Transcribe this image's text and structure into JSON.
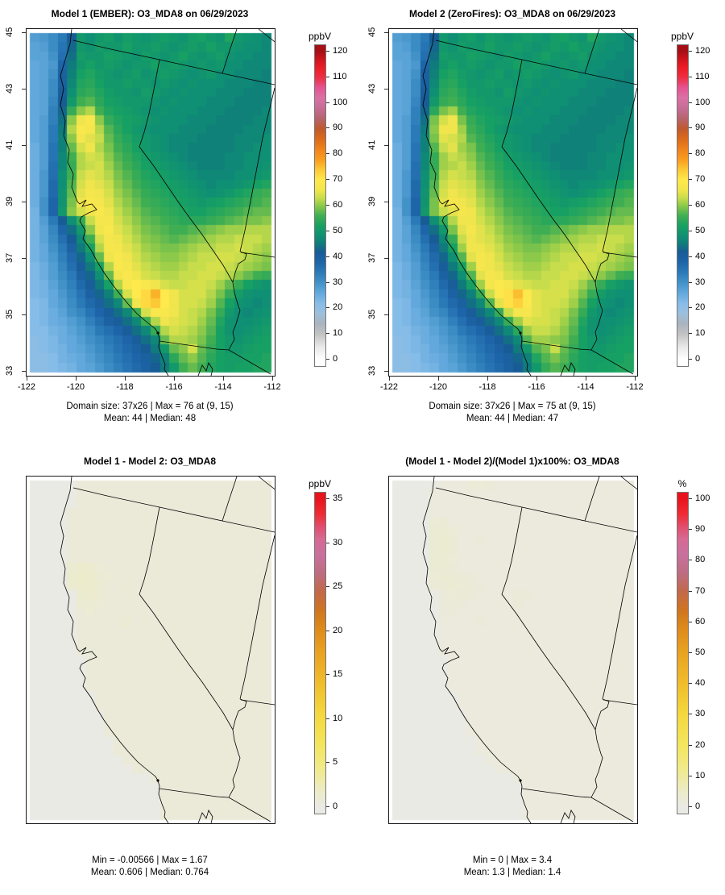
{
  "chart_data": {
    "type": "heatmap",
    "description_titles": "2x2 gridded model comparison maps of California/Nevada domain",
    "axes": {
      "x_tick_labels": [
        "-122",
        "-120",
        "-118",
        "-116",
        "-114",
        "-112"
      ],
      "y_tick_labels": [
        "33",
        "35",
        "37",
        "39",
        "41",
        "43",
        "45"
      ],
      "x_range": [
        -122,
        -112
      ],
      "y_range": [
        33,
        45
      ]
    },
    "palettes": {
      "main": [
        [
          0,
          "#ffffff"
        ],
        [
          0.042,
          "#e8e8e8"
        ],
        [
          0.083,
          "#c2c2c2"
        ],
        [
          0.117,
          "#aab4bf"
        ],
        [
          0.15,
          "#9cc0dd"
        ],
        [
          0.183,
          "#86bce8"
        ],
        [
          0.217,
          "#62a8dc"
        ],
        [
          0.25,
          "#4292c8"
        ],
        [
          0.283,
          "#2a7ab8"
        ],
        [
          0.317,
          "#1d64a8"
        ],
        [
          0.35,
          "#185c95"
        ],
        [
          0.375,
          "#107a7c"
        ],
        [
          0.4,
          "#0f8f74"
        ],
        [
          0.433,
          "#17a063"
        ],
        [
          0.467,
          "#3fae53"
        ],
        [
          0.5,
          "#8cc94a"
        ],
        [
          0.525,
          "#c8dd4b"
        ],
        [
          0.55,
          "#f0e54c"
        ],
        [
          0.583,
          "#ffe94d"
        ],
        [
          0.617,
          "#fcc936"
        ],
        [
          0.65,
          "#f99b20"
        ],
        [
          0.683,
          "#f0831c"
        ],
        [
          0.717,
          "#db6a1a"
        ],
        [
          0.75,
          "#c05a2e"
        ],
        [
          0.783,
          "#b76470"
        ],
        [
          0.817,
          "#c66d96"
        ],
        [
          0.85,
          "#da71a5"
        ],
        [
          0.883,
          "#e55390"
        ],
        [
          0.917,
          "#ee2d42"
        ],
        [
          0.95,
          "#ea1c24"
        ],
        [
          0.983,
          "#c4121a"
        ],
        [
          1,
          "#a50f15"
        ]
      ],
      "warm": [
        [
          0,
          "#eaeae4"
        ],
        [
          0.05,
          "#ecebc9"
        ],
        [
          0.12,
          "#f0ea8e"
        ],
        [
          0.2,
          "#f3e65e"
        ],
        [
          0.3,
          "#f4d83f"
        ],
        [
          0.4,
          "#f0bd2d"
        ],
        [
          0.5,
          "#e9a321"
        ],
        [
          0.58,
          "#dd8a1b"
        ],
        [
          0.64,
          "#cf7420"
        ],
        [
          0.7,
          "#c2694a"
        ],
        [
          0.76,
          "#bd6d82"
        ],
        [
          0.82,
          "#c9709e"
        ],
        [
          0.87,
          "#d66a94"
        ],
        [
          0.91,
          "#e14e6d"
        ],
        [
          0.95,
          "#ee2c35"
        ],
        [
          1,
          "#e8141c"
        ]
      ]
    },
    "panels": [
      {
        "id": "model1",
        "title": "Model 1 (EMBER): O3_MDA8 on 06/29/2023",
        "colorbar": {
          "unit": "ppbV",
          "vmax": 120,
          "palette": "main",
          "ticks": [
            0,
            10,
            20,
            30,
            40,
            50,
            60,
            70,
            80,
            90,
            100,
            110,
            120
          ]
        },
        "stats": [
          "Domain size: 37x26 | Max = 76 at (9, 15)",
          "Mean: 44 |  Median: 48"
        ],
        "has_axes": true,
        "grid": {
          "ncols": 26,
          "nrows": 37,
          "vmax": 120,
          "units": "ppbV",
          "rows": [
            "28 29 31 34 42 50 48 50 51 49 51 50 49 50 51 50 49 51 52 50 49 53 50 49 48 47",
            "27 28 31 35 43 50 49 51 50 50 52 50 50 51 50 49 50 51 50 52 50 50 49 48 48 47",
            "27 27 30 36 44 51 50 50 52 51 50 49 51 50 49 50 52 50 49 50 51 49 48 48 47 47",
            "26 27 29 38 45 50 52 50 51 50 49 50 50 52 50 51 50 49 50 49 50 48 48 47 47 47",
            "26 27 30 40 46 52 53 51 50 49 50 51 49 50 51 50 49 48 49 50 48 48 47 47 47 46",
            "26 27 31 40 47 53 54 52 50 50 51 50 50 49 50 49 48 49 48 48 48 47 47 47 46 46",
            "26 27 31 41 48 54 55 53 51 50 50 49 51 50 49 48 49 48 48 48 47 47 47 46 46 46",
            "26 27 32 42 50 56 57 54 52 51 50 50 50 49 48 49 48 48 48 47 47 47 46 46 46 46",
            "26 27 33 43 55 60 62 56 53 52 51 50 49 48 49 48 48 48 47 47 47 46 46 46 46 47",
            "26 28 33 44 60 66 68 60 55 53 52 51 50 49 48 48 48 47 47 47 46 46 46 46 47 47",
            "26 28 34 45 62 68 67 62 57 54 52 50 49 48 48 48 47 47 47 46 46 46 46 47 47 47",
            "26 28 34 46 60 67 65 63 58 55 53 51 50 49 48 47 47 47 46 46 46 46 47 47 47 48",
            "25 28 35 46 58 64 66 62 59 56 54 52 50 49 48 47 47 46 46 46 46 46 47 47 48 48",
            "25 28 35 47 56 62 64 63 60 57 55 53 51 50 49 48 47 46 46 46 46 47 47 48 48 48",
            "25 28 36 47 55 62 63 64 61 58 56 54 52 51 50 49 48 47 46 46 46 47 47 48 48 49",
            "25 29 36 48 56 63 65 64 62 59 57 55 53 52 51 50 49 48 47 47 47 47 48 48 49 50",
            "25 29 37 48 57 64 66 65 63 60 58 56 54 53 52 51 50 49 48 47 48 48 49 50 52 53",
            "25 29 37 49 58 65 67 66 64 61 59 57 55 54 53 52 51 50 49 48 49 50 52 53 55 56",
            "25 30 38 49 59 66 68 67 65 62 60 58 56 55 54 53 52 51 50 51 52 53 54 55 56 57",
            "24 30 38 50 60 64 66 68 66 63 61 59 57 56 55 54 53 52 52 53 54 55 56 57 58 58",
            "24 28 34 42 48 55 63 67 67 64 62 60 58 57 56 55 54 54 54 55 56 57 58 59 59 60",
            "24 27 32 38 44 50 60 66 68 65 63 61 59 58 57 56 56 57 58 59 60 61 61 62 62 62",
            "24 27 31 36 42 47 56 64 67 66 64 62 60 59 58 57 58 59 60 61 62 62 63 63 63 62",
            "24 26 30 34 39 45 52 62 67 67 65 63 61 60 59 59 60 61 62 62 63 63 64 63 62 61",
            "24 26 29 33 37 43 48 58 66 68 66 64 62 61 60 60 61 62 63 63 64 64 63 62 61 60",
            "23 25 28 32 36 41 45 52 62 68 67 65 63 62 61 61 62 63 63 64 64 63 62 61 60 59",
            "23 25 28 31 34 39 43 48 58 66 68 66 64 63 62 62 63 63 64 64 63 62 60 58 56 55",
            "23 24 27 30 33 37 41 45 52 62 68 70 68 66 64 63 63 64 64 63 61 58 55 52 50 49",
            "23 24 26 29 32 35 39 43 46 56 64 70 72 76 70 66 64 64 64 62 59 55 51 49 48 48",
            "22 23 26 28 31 34 37 40 44 47 58 66 72 74 70 66 64 64 63 61 57 52 49 48 47 48",
            "22 23 25 27 30 32 35 38 41 44 47 56 64 68 68 66 64 63 62 59 55 50 48 47 48 49",
            "22 23 25 26 28 30 33 36 39 41 44 47 56 62 66 65 64 63 61 58 53 49 48 48 49 50",
            "22 22 24 25 27 29 31 34 36 38 41 44 47 55 62 64 63 62 60 57 52 49 48 49 50 51",
            "21 22 23 25 26 28 30 32 34 36 38 41 44 47 58 62 62 61 59 56 52 50 49 50 51 52",
            "21 22 23 24 26 27 29 31 33 35 37 39 42 45 50 58 60 64 58 55 52 50 50 51 52 52",
            "21 21 22 24 25 26 28 30 32 34 36 38 40 43 46 54 58 60 57 54 52 51 51 52 52 53",
            "21 21 22 23 24 26 27 29 31 33 35 37 39 42 45 50 56 58 56 53 52 51 52 52 53 53"
          ]
        }
      },
      {
        "id": "model2",
        "title": "Model 2 (ZeroFires): O3_MDA8 on 06/29/2023",
        "colorbar": {
          "unit": "ppbV",
          "vmax": 120,
          "palette": "main",
          "ticks": [
            0,
            10,
            20,
            30,
            40,
            50,
            60,
            70,
            80,
            90,
            100,
            110,
            120
          ]
        },
        "stats": [
          "Domain size: 37x26 | Max = 75 at (9, 15)",
          "Mean: 44 |  Median: 47"
        ],
        "has_axes": true,
        "grid": {
          "ncols": 26,
          "nrows": 37,
          "vmax": 120,
          "units": "ppbV",
          "rows": [
            "28 29 31 34 42 50 48 50 51 49 51 50 49 50 51 50 49 51 52 50 49 53 50 49 48 47",
            "27 28 31 35 43 50 49 51 50 50 52 50 50 51 50 49 50 51 50 52 50 50 49 48 48 47",
            "27 27 30 36 44 51 50 50 52 51 50 49 51 50 49 50 52 50 49 50 51 49 48 48 47 47",
            "26 27 29 38 45 50 52 50 51 50 49 50 50 52 50 51 50 49 50 49 50 48 48 47 47 47",
            "26 27 30 40 46 52 53 51 50 49 50 51 49 50 51 50 49 48 49 50 48 48 47 47 47 46",
            "26 27 31 40 47 53 54 52 50 50 51 50 50 49 50 49 48 49 48 48 48 47 47 47 46 46",
            "26 27 31 41 48 54 55 53 51 50 50 49 51 50 49 48 49 48 48 48 47 47 47 46 46 46",
            "26 27 32 42 50 55 56 54 52 51 50 50 50 49 48 49 48 48 48 47 47 47 46 46 46 46",
            "26 27 33 43 54 59 61 56 53 52 51 50 49 48 49 48 48 48 47 47 47 46 46 46 46 47",
            "26 28 33 44 59 64 66 59 55 53 52 51 50 49 48 48 48 47 47 47 46 46 46 46 47 47",
            "26 28 34 45 60 66 66 61 56 54 52 50 49 48 48 48 47 47 47 46 46 46 46 47 47 47",
            "26 28 34 46 59 65 64 62 57 55 53 51 50 49 48 47 47 47 46 46 46 46 47 47 47 48",
            "25 28 35 46 57 63 65 61 59 56 54 52 50 49 48 47 47 46 46 46 46 46 47 47 48 48",
            "25 28 35 47 55 61 63 62 60 57 55 53 51 50 49 48 47 46 46 46 46 47 47 48 48 48",
            "25 28 36 47 55 61 62 63 61 58 56 54 52 51 50 49 48 47 46 46 46 47 47 48 48 49",
            "25 29 36 48 56 62 64 63 62 59 57 55 53 52 51 50 49 48 47 47 47 47 48 48 49 50",
            "25 29 37 48 57 63 65 64 63 60 58 56 54 53 52 51 50 49 48 47 48 48 49 50 52 53",
            "25 29 37 49 58 64 66 65 64 61 59 57 55 54 53 52 51 50 49 48 49 50 52 53 55 56",
            "25 30 38 49 59 65 67 66 65 62 60 58 56 55 54 53 52 51 50 51 52 53 54 55 56 57",
            "24 30 38 50 59 63 65 67 66 63 61 59 57 56 55 54 53 52 52 53 54 55 56 57 58 58",
            "24 28 34 42 48 55 62 66 66 64 62 60 58 57 56 55 54 54 54 55 56 57 58 59 59 60",
            "24 27 32 38 44 50 59 65 67 65 63 61 59 58 57 56 56 57 58 59 60 61 61 62 62 62",
            "24 27 31 36 42 47 55 63 66 65 64 62 60 59 58 57 58 59 60 61 62 62 63 63 63 62",
            "24 26 30 34 39 45 52 61 66 66 65 63 61 60 59 59 60 61 62 62 63 63 64 63 62 61",
            "24 26 29 33 37 43 48 57 65 67 66 64 62 61 60 60 61 62 63 63 64 64 63 62 61 60",
            "23 25 28 32 36 41 45 52 61 67 66 65 63 62 61 61 62 63 63 64 64 63 62 61 60 59",
            "23 25 28 31 34 39 43 48 57 65 67 66 64 63 62 62 63 63 64 64 63 62 60 58 56 55",
            "23 24 27 30 33 37 41 45 52 61 67 69 67 65 64 63 63 64 64 63 61 58 55 52 50 49",
            "23 24 26 29 32 35 39 43 46 55 63 69 71 75 69 65 64 64 64 62 59 55 51 49 48 48",
            "22 23 26 28 31 34 37 40 44 47 57 65 71 73 69 65 64 64 63 61 57 52 49 48 47 48",
            "22 23 25 27 30 32 35 38 41 44 47 55 63 67 67 65 64 63 62 59 55 50 48 47 48 49",
            "22 23 25 26 28 30 33 36 39 41 44 47 55 61 65 64 64 63 61 58 53 49 48 48 49 50",
            "22 22 24 25 27 29 31 34 36 38 41 44 47 54 61 63 63 62 60 57 52 49 48 49 50 51",
            "21 22 23 25 26 28 30 32 34 36 38 41 44 47 57 61 61 60 59 56 52 50 49 50 51 52",
            "21 22 23 24 26 27 29 31 33 35 37 39 42 45 50 57 59 63 58 55 52 50 50 51 52 52",
            "21 21 22 24 25 26 28 30 32 34 36 38 40 43 46 53 57 59 57 54 52 51 51 52 52 53",
            "21 21 22 23 24 26 27 29 31 33 35 37 39 42 45 50 55 57 56 53 52 51 52 52 53 53"
          ]
        }
      },
      {
        "id": "difference",
        "title": "Model 1 - Model 2: O3_MDA8",
        "colorbar": {
          "unit": "ppbV",
          "vmax": 35,
          "palette": "warm",
          "ticks": [
            0,
            5,
            10,
            15,
            20,
            25,
            30,
            35
          ]
        },
        "stats": [
          "Min = -0.00566 | Max = 1.67",
          "Mean: 0.606 |  Median: 0.764"
        ],
        "has_axes": false,
        "grid": {
          "ncols": 26,
          "nrows": 37,
          "vmax": 35,
          "units": "ppbV",
          "rows": [
            "0*5 0.7*21",
            "0*5 0.7*21",
            "0*5 0.7*21",
            "0*4 0.7*22",
            "0*4 0.7*22",
            "0*4 0.7*22",
            "0*4 0.7*22",
            "0*4 0.7*22",
            "0*4 0.8 0.8 0.7*20",
            "0*4 1.2 1.4 1.3 0.9 0.8 0.7*17",
            "0*4 1.3 1.67 1.4 1.1 0.9 0.7*17",
            "0*4 1.2 1.5 1.4 1.2 0.8 0.7 1.0 0.7*15",
            "0*5 1.3 1.4 1.1 0.8 0.7*17",
            "0*5 1.1 1.2 0.9 0.7*18",
            "0*5 0.8 0.9 0.7*19",
            "0*5 0.7*5 1.1 0.7*15",
            "0*5 0.7*21",
            "0*5 0.7*21",
            "0*5 0.7*21",
            "0*6 0.7*20",
            "0*6 0.7*20",
            "0*6 0.7*20",
            "0*6 0.7*20",
            "0*7 0.7*19",
            "0*7 0.7*19",
            "0*8 0.7*18",
            "0*8 0.7*18",
            "0*8 0.7*18",
            "0*9 0.7*17",
            "0*9 0.7*17",
            "0*10 0.7*16",
            "0*11 0.7*15",
            "0*13 0.7*13",
            "0*14 0.7*12",
            "0*14 0.7*12",
            "0*14 0.7*12",
            "0*14 0.7*12"
          ]
        }
      },
      {
        "id": "percent-difference",
        "title": "(Model 1 - Model 2)/(Model 1)x100%: O3_MDA8",
        "colorbar": {
          "unit": "%",
          "vmax": 100,
          "palette": "warm",
          "ticks": [
            0,
            10,
            20,
            30,
            40,
            50,
            60,
            70,
            80,
            90,
            100
          ]
        },
        "stats": [
          "Min = 0 | Max = 3.4",
          "Mean: 1.3 |  Median: 1.4"
        ],
        "has_axes": false,
        "grid": {
          "ncols": 26,
          "nrows": 37,
          "vmax": 100,
          "units": "%",
          "rows": [
            "0*5 1.3*3 2.5 2.5 2.3 1.3*15",
            "0*4 1.3*22",
            "0*4 1.3*22",
            "0*4 1.3*22",
            "0*4 2.6 2.8 1.3*20",
            "0*4 3.0 3.2 2.6 1.3*19",
            "0*4 3.2 3.4 2.8 1.3 1.3 2.0 1.3*16",
            "0*4 3.1 3.3 2.7 1.3*19",
            "0*4 3.0 3.2 2.5 1.3*19",
            "0*4 2.8 3.0 2.4 1.3*19",
            "0*4 2.6 2.9 2.8 2.4 2.2 1.3*17",
            "0*4 2.4 2.8 2.9 2.6 2.2 2.0 1.3*16",
            "0*5 2.2 2.5 2.4 2.1 1.3*4 2.0 2.1 1.3*11",
            "0*5 2.0 2.3 2.2 1.3*5 2.0 1.3*12",
            "0*5 1.8 2.0 1.3*19",
            "0*5 1.3*4 2.1 1.3*16",
            "0*5 1.3*21",
            "0*5 1.3*21",
            "0*5 1.3*21",
            "0*6 1.3*20",
            "0*6 1.3*20",
            "0*6 1.3*20",
            "0*6 1.3*20",
            "0*7 1.3*19",
            "0*7 1.3*19",
            "0*8 1.3*18",
            "0*8 1.3*18",
            "0*8 1.3*18",
            "0*9 1.3*17",
            "0*9 1.3*17",
            "0*10 1.3*16",
            "0*11 1.3*15",
            "0*13 1.3*13",
            "0*14 1.3*12",
            "0*14 1.3*12",
            "0*14 1.3*12",
            "0*14 1.3*12"
          ]
        }
      }
    ]
  }
}
